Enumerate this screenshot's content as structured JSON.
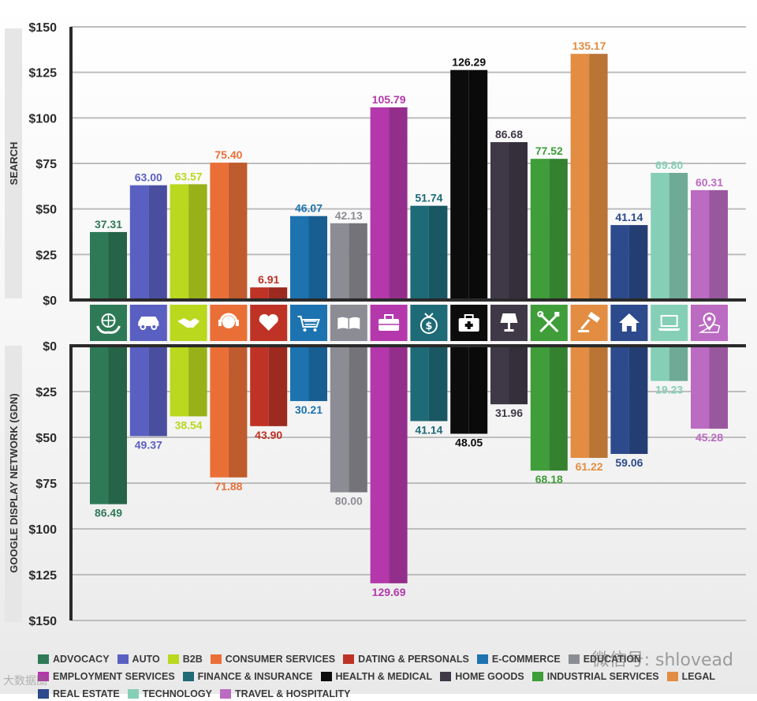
{
  "chart_data": {
    "type": "bar",
    "layout": "diverging",
    "categories": [
      "ADVOCACY",
      "AUTO",
      "B2B",
      "CONSUMER SERVICES",
      "DATING & PERSONALS",
      "E-COMMERCE",
      "EDUCATION",
      "EMPLOYMENT SERVICES",
      "FINANCE & INSURANCE",
      "HEALTH & MEDICAL",
      "HOME GOODS",
      "INDUSTRIAL SERVICES",
      "LEGAL",
      "REAL ESTATE",
      "TECHNOLOGY",
      "TRAVEL & HOSPITALITY"
    ],
    "series": [
      {
        "name": "SEARCH",
        "values": [
          37.31,
          63.0,
          63.57,
          75.4,
          6.91,
          46.07,
          42.13,
          105.79,
          51.74,
          126.29,
          86.68,
          77.52,
          135.17,
          41.14,
          69.8,
          60.31
        ]
      },
      {
        "name": "GOOGLE DISPLAY NETWORK (GDN)",
        "values": [
          86.49,
          49.37,
          38.54,
          71.88,
          43.9,
          30.21,
          80.0,
          129.69,
          41.14,
          48.05,
          31.96,
          68.18,
          61.22,
          59.06,
          19.23,
          45.28
        ]
      }
    ],
    "value_labels": {
      "search": [
        "37.31",
        "63.00",
        "63.57",
        "75.40",
        "6.91",
        "46.07",
        "42.13",
        "105.79",
        "51.74",
        "126.29",
        "86.68",
        "77.52",
        "135.17",
        "41.14",
        "69.80",
        "60.31"
      ],
      "gdn": [
        "86.49",
        "49.37",
        "38.54",
        "71.88",
        "43.90",
        "30.21",
        "80.00",
        "129.69",
        "41.14",
        "48.05",
        "31.96",
        "68.18",
        "61.22",
        "59.06",
        "19.23",
        "45.28"
      ]
    },
    "colors": [
      "#2e7a57",
      "#5a5fc2",
      "#b9d81e",
      "#ea6f37",
      "#be3325",
      "#1d73b0",
      "#8c8c94",
      "#b438ab",
      "#1e6a77",
      "#0c0c0c",
      "#3f3947",
      "#3f9d3a",
      "#e28d42",
      "#2c4a8c",
      "#86cfb7",
      "#bb6bc1"
    ],
    "icons": [
      "globe-hands-icon",
      "car-icon",
      "handshake-icon",
      "headset-person-icon",
      "heart-icon",
      "shopping-cart-icon",
      "open-book-icon",
      "briefcase-icon",
      "money-bag-icon",
      "first-aid-kit-icon",
      "lamp-icon",
      "tools-icon",
      "gavel-icon",
      "house-icon",
      "laptop-icon",
      "map-pin-icon"
    ],
    "axes": {
      "search": {
        "label": "SEARCH",
        "range": [
          0,
          150
        ],
        "ticks": [
          "$0",
          "$25",
          "$50",
          "$75",
          "$100",
          "$125",
          "$150"
        ]
      },
      "gdn": {
        "label": "GOOGLE DISPLAY NETWORK (GDN)",
        "range": [
          0,
          150
        ],
        "ticks": [
          "$0",
          "$25",
          "$50",
          "$75",
          "$100",
          "$125",
          "$150"
        ]
      }
    },
    "grid": true,
    "legend_position": "bottom"
  },
  "legend": [
    "ADVOCACY",
    "AUTO",
    "B2B",
    "CONSUMER SERVICES",
    "DATING & PERSONALS",
    "E-COMMERCE",
    "EDUCATION",
    "EMPLOYMENT SERVICES",
    "FINANCE & INSURANCE",
    "HEALTH & MEDICAL",
    "HOME GOODS",
    "INDUSTRIAL SERVICES",
    "LEGAL",
    "REAL ESTATE",
    "TECHNOLOGY",
    "TRAVEL & HOSPITALITY"
  ],
  "watermark": "微信号: shlovead",
  "corner_mark": "大数据圈"
}
